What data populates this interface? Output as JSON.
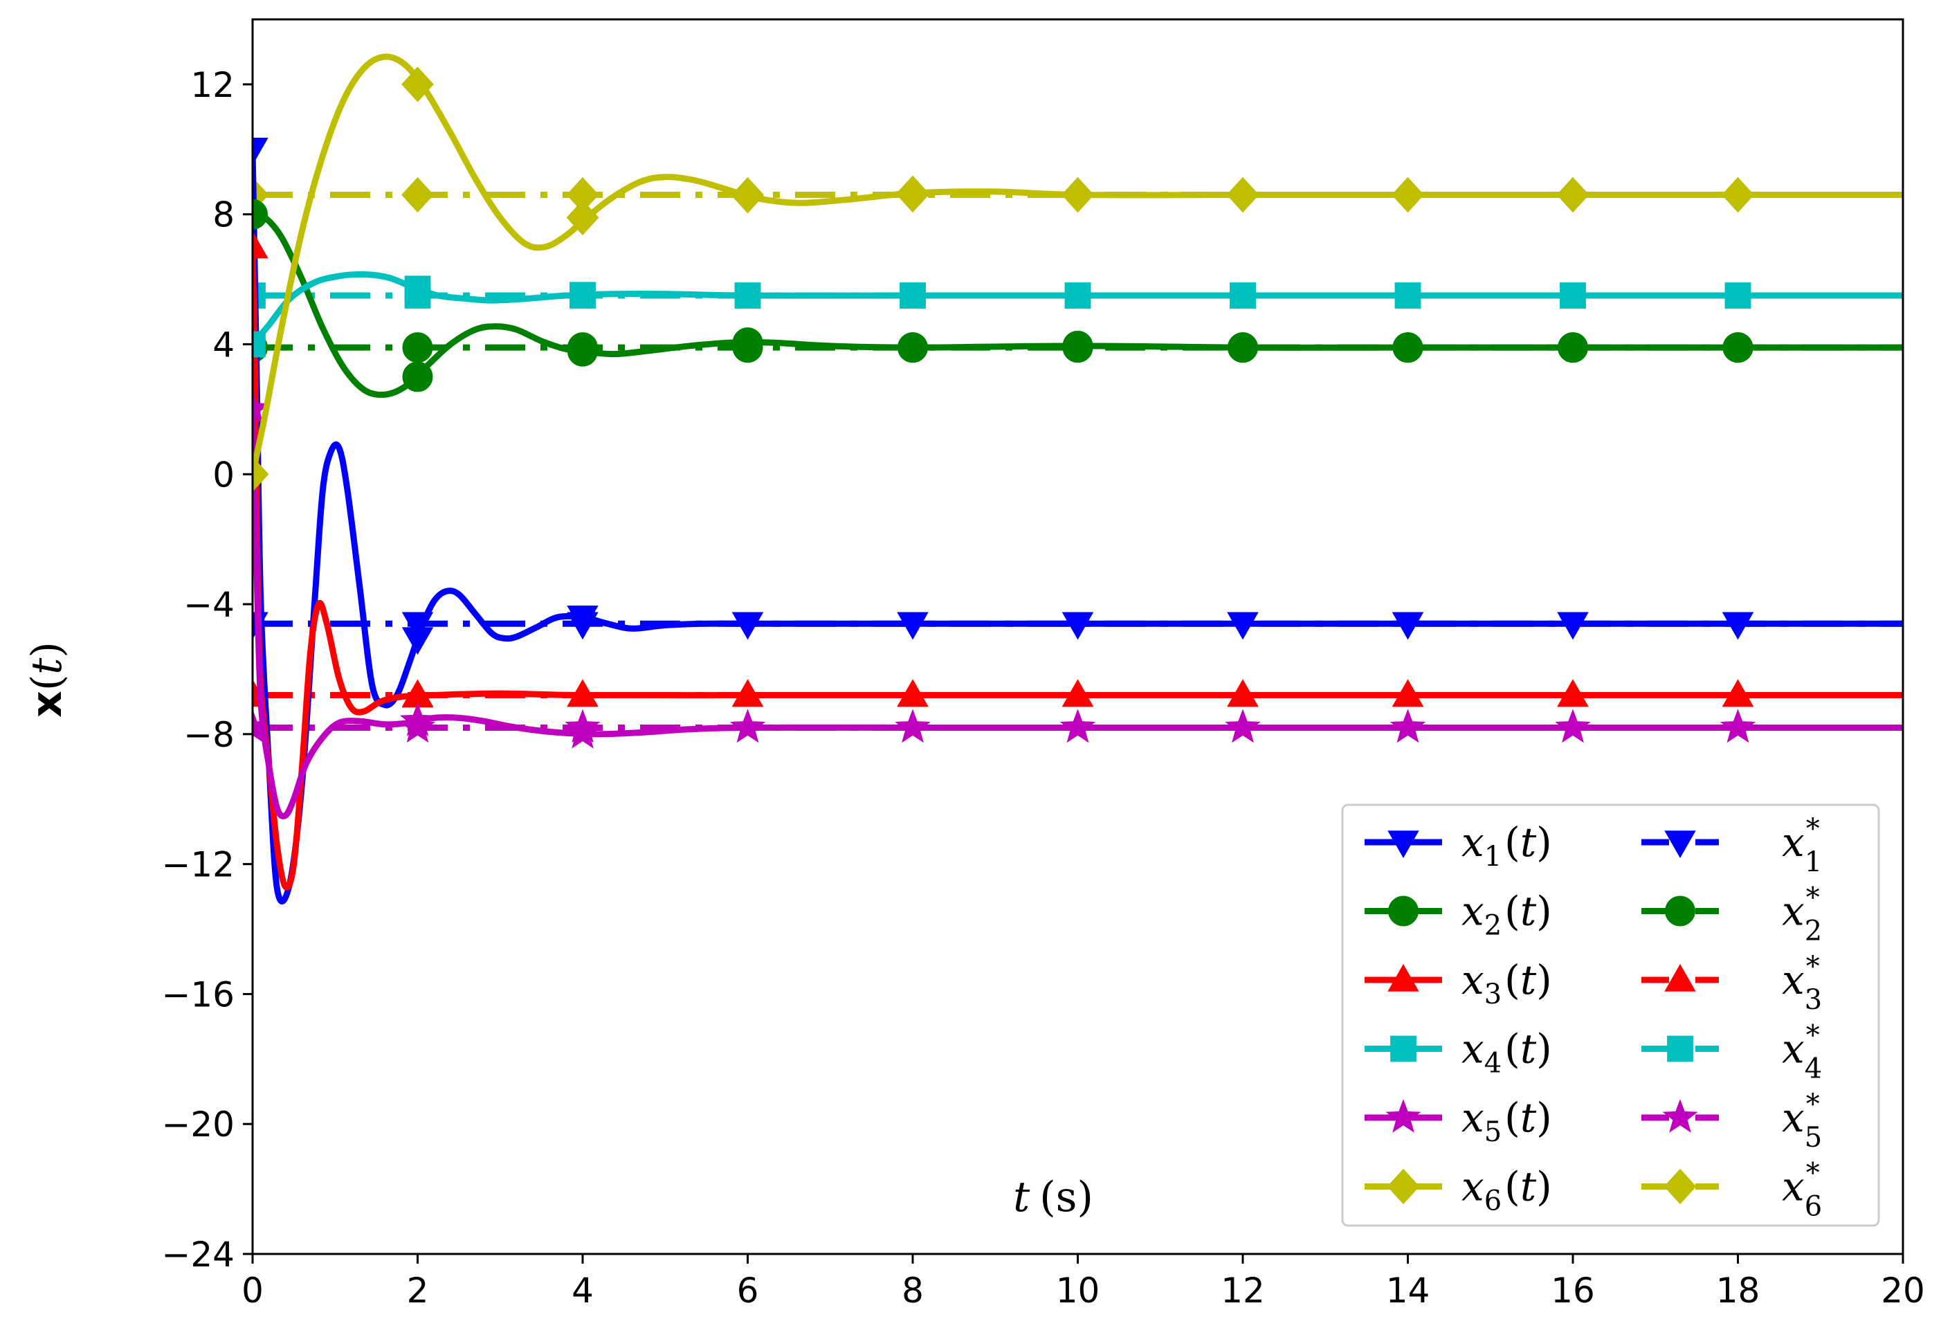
{
  "chart_data": {
    "type": "line",
    "title": "",
    "xlabel": "t (s)",
    "xlabel_main": "t",
    "xlabel_unit": "(s)",
    "ylabel": "x(t)",
    "ylabel_main": "x",
    "ylabel_var": "t",
    "xlim": [
      0,
      20
    ],
    "ylim": [
      -24,
      14
    ],
    "xticks": [
      0,
      2,
      4,
      6,
      8,
      10,
      12,
      14,
      16,
      18,
      20
    ],
    "yticks": [
      -24,
      -20,
      -16,
      -12,
      -8,
      -4,
      0,
      4,
      8,
      12
    ],
    "ytick_labels": [
      "−24",
      "−20",
      "−16",
      "−12",
      "−8",
      "−4",
      "0",
      "4",
      "8",
      "12"
    ],
    "grid": false,
    "legend_position": "lower-right",
    "legend_columns": 2,
    "series": [
      {
        "name": "x1(t)",
        "label_var": "x",
        "label_sub": "1",
        "label_suffix": "(t)",
        "color": "#0000ff",
        "marker": "triangle-down",
        "style": "solid",
        "points": [
          [
            0,
            10
          ],
          [
            0.05,
            3
          ],
          [
            0.1,
            -4
          ],
          [
            0.2,
            -9
          ],
          [
            0.3,
            -12.8
          ],
          [
            0.45,
            -12.6
          ],
          [
            0.6,
            -9.5
          ],
          [
            0.75,
            -4
          ],
          [
            0.85,
            -0.5
          ],
          [
            0.95,
            0.7
          ],
          [
            1.05,
            0.8
          ],
          [
            1.15,
            -0.5
          ],
          [
            1.3,
            -3.5
          ],
          [
            1.45,
            -6.5
          ],
          [
            1.6,
            -7.1
          ],
          [
            1.75,
            -6.8
          ],
          [
            1.9,
            -5.8
          ],
          [
            2.05,
            -4.7
          ],
          [
            2.2,
            -3.9
          ],
          [
            2.35,
            -3.6
          ],
          [
            2.5,
            -3.7
          ],
          [
            2.7,
            -4.3
          ],
          [
            2.9,
            -4.9
          ],
          [
            3.05,
            -5.05
          ],
          [
            3.2,
            -5
          ],
          [
            3.45,
            -4.7
          ],
          [
            3.7,
            -4.4
          ],
          [
            4.0,
            -4.4
          ],
          [
            4.3,
            -4.6
          ],
          [
            4.6,
            -4.75
          ],
          [
            5.0,
            -4.65
          ],
          [
            5.5,
            -4.6
          ],
          [
            6,
            -4.6
          ],
          [
            8,
            -4.6
          ],
          [
            10,
            -4.6
          ],
          [
            12,
            -4.6
          ],
          [
            14,
            -4.6
          ],
          [
            16,
            -4.6
          ],
          [
            18,
            -4.6
          ],
          [
            20,
            -4.6
          ]
        ],
        "marker_x": [
          0,
          2,
          4,
          6,
          8,
          10,
          12,
          14,
          16,
          18
        ]
      },
      {
        "name": "x2(t)",
        "label_var": "x",
        "label_sub": "2",
        "label_suffix": "(t)",
        "color": "#008000",
        "marker": "circle",
        "style": "solid",
        "points": [
          [
            0,
            8
          ],
          [
            0.15,
            7.9
          ],
          [
            0.35,
            7.3
          ],
          [
            0.6,
            6
          ],
          [
            0.85,
            4.5
          ],
          [
            1.1,
            3.3
          ],
          [
            1.35,
            2.6
          ],
          [
            1.6,
            2.45
          ],
          [
            1.85,
            2.7
          ],
          [
            2.1,
            3.3
          ],
          [
            2.4,
            4
          ],
          [
            2.7,
            4.45
          ],
          [
            2.95,
            4.55
          ],
          [
            3.2,
            4.45
          ],
          [
            3.5,
            4.1
          ],
          [
            3.8,
            3.85
          ],
          [
            4.1,
            3.75
          ],
          [
            4.4,
            3.7
          ],
          [
            4.8,
            3.8
          ],
          [
            5.3,
            3.95
          ],
          [
            5.8,
            4.05
          ],
          [
            6.3,
            4.05
          ],
          [
            7,
            3.95
          ],
          [
            8,
            3.9
          ],
          [
            10,
            3.95
          ],
          [
            12,
            3.9
          ],
          [
            14,
            3.9
          ],
          [
            16,
            3.9
          ],
          [
            18,
            3.9
          ],
          [
            20,
            3.9
          ]
        ],
        "marker_x": [
          0,
          2,
          4,
          6,
          8,
          10,
          12,
          14,
          16,
          18
        ],
        "marker_override": [
          [
            2,
            3.0
          ]
        ]
      },
      {
        "name": "x3(t)",
        "label_var": "x",
        "label_sub": "3",
        "label_suffix": "(t)",
        "color": "#ff0000",
        "marker": "triangle-up",
        "style": "solid",
        "points": [
          [
            0,
            7
          ],
          [
            0.03,
            3
          ],
          [
            0.06,
            -3
          ],
          [
            0.1,
            -6.5
          ],
          [
            0.2,
            -9
          ],
          [
            0.3,
            -11.5
          ],
          [
            0.4,
            -12.7
          ],
          [
            0.5,
            -12
          ],
          [
            0.6,
            -9
          ],
          [
            0.7,
            -5.5
          ],
          [
            0.8,
            -4
          ],
          [
            0.9,
            -4.6
          ],
          [
            1.05,
            -6.3
          ],
          [
            1.2,
            -7.2
          ],
          [
            1.35,
            -7.3
          ],
          [
            1.55,
            -7
          ],
          [
            1.8,
            -6.85
          ],
          [
            2.2,
            -6.8
          ],
          [
            3,
            -6.75
          ],
          [
            4,
            -6.8
          ],
          [
            6,
            -6.8
          ],
          [
            8,
            -6.8
          ],
          [
            10,
            -6.8
          ],
          [
            12,
            -6.8
          ],
          [
            14,
            -6.8
          ],
          [
            16,
            -6.8
          ],
          [
            18,
            -6.8
          ],
          [
            20,
            -6.8
          ]
        ],
        "marker_x": [
          0,
          2,
          4,
          6,
          8,
          10,
          12,
          14,
          16,
          18
        ]
      },
      {
        "name": "x4(t)",
        "label_var": "x",
        "label_sub": "4",
        "label_suffix": "(t)",
        "color": "#00bfbf",
        "marker": "square",
        "style": "solid",
        "points": [
          [
            0,
            4
          ],
          [
            0.2,
            4.6
          ],
          [
            0.45,
            5.4
          ],
          [
            0.75,
            5.9
          ],
          [
            1.05,
            6.1
          ],
          [
            1.35,
            6.15
          ],
          [
            1.65,
            6.05
          ],
          [
            1.95,
            5.75
          ],
          [
            2.25,
            5.5
          ],
          [
            2.6,
            5.4
          ],
          [
            2.9,
            5.35
          ],
          [
            3.3,
            5.4
          ],
          [
            3.8,
            5.5
          ],
          [
            4.4,
            5.55
          ],
          [
            5,
            5.55
          ],
          [
            6,
            5.5
          ],
          [
            8,
            5.5
          ],
          [
            10,
            5.5
          ],
          [
            12,
            5.5
          ],
          [
            14,
            5.5
          ],
          [
            16,
            5.5
          ],
          [
            18,
            5.5
          ],
          [
            20,
            5.5
          ]
        ],
        "marker_x": [
          0,
          2,
          4,
          6,
          8,
          10,
          12,
          14,
          16,
          18
        ]
      },
      {
        "name": "x5(t)",
        "label_var": "x",
        "label_sub": "5",
        "label_suffix": "(t)",
        "color": "#bf00bf",
        "marker": "star",
        "style": "solid",
        "points": [
          [
            0,
            2
          ],
          [
            0.05,
            -3
          ],
          [
            0.1,
            -7
          ],
          [
            0.2,
            -9
          ],
          [
            0.3,
            -10.3
          ],
          [
            0.4,
            -10.5
          ],
          [
            0.5,
            -10
          ],
          [
            0.65,
            -8.9
          ],
          [
            0.85,
            -8.1
          ],
          [
            1.05,
            -7.65
          ],
          [
            1.3,
            -7.6
          ],
          [
            1.6,
            -7.7
          ],
          [
            1.9,
            -7.65
          ],
          [
            2.2,
            -7.5
          ],
          [
            2.5,
            -7.5
          ],
          [
            2.8,
            -7.6
          ],
          [
            3.2,
            -7.8
          ],
          [
            3.7,
            -7.95
          ],
          [
            4.2,
            -8
          ],
          [
            4.7,
            -7.95
          ],
          [
            5.3,
            -7.85
          ],
          [
            6,
            -7.8
          ],
          [
            8,
            -7.8
          ],
          [
            10,
            -7.8
          ],
          [
            12,
            -7.8
          ],
          [
            14,
            -7.8
          ],
          [
            16,
            -7.8
          ],
          [
            18,
            -7.8
          ],
          [
            20,
            -7.8
          ]
        ],
        "marker_x": [
          0,
          2,
          4,
          6,
          8,
          10,
          12,
          14,
          16,
          18
        ]
      },
      {
        "name": "x6(t)",
        "label_var": "x",
        "label_sub": "6",
        "label_suffix": "(t)",
        "color": "#bfbf00",
        "marker": "diamond",
        "style": "solid",
        "points": [
          [
            0,
            0
          ],
          [
            0.15,
            1.8
          ],
          [
            0.35,
            4.5
          ],
          [
            0.6,
            7.5
          ],
          [
            0.85,
            9.8
          ],
          [
            1.1,
            11.5
          ],
          [
            1.35,
            12.5
          ],
          [
            1.6,
            12.85
          ],
          [
            1.85,
            12.6
          ],
          [
            2.1,
            11.8
          ],
          [
            2.4,
            10.5
          ],
          [
            2.7,
            9.1
          ],
          [
            3.0,
            7.9
          ],
          [
            3.3,
            7.1
          ],
          [
            3.55,
            7
          ],
          [
            3.8,
            7.35
          ],
          [
            4.05,
            7.9
          ],
          [
            4.35,
            8.5
          ],
          [
            4.7,
            9
          ],
          [
            5.0,
            9.15
          ],
          [
            5.35,
            9.05
          ],
          [
            5.7,
            8.8
          ],
          [
            6.1,
            8.5
          ],
          [
            6.6,
            8.35
          ],
          [
            7.2,
            8.45
          ],
          [
            8,
            8.65
          ],
          [
            9,
            8.7
          ],
          [
            10,
            8.6
          ],
          [
            12,
            8.6
          ],
          [
            14,
            8.6
          ],
          [
            16,
            8.6
          ],
          [
            18,
            8.6
          ],
          [
            20,
            8.6
          ]
        ],
        "marker_x": [
          0,
          2,
          4,
          6,
          8,
          10,
          12,
          14,
          16,
          18
        ],
        "marker_override": [
          [
            2,
            12.0
          ],
          [
            4,
            7.9
          ]
        ]
      },
      {
        "name": "x1*",
        "label_var": "x",
        "label_sub": "1",
        "label_suffix": "*",
        "color": "#0000ff",
        "marker": "triangle-down",
        "style": "dashdot",
        "points": [
          [
            0,
            -4.6
          ],
          [
            20,
            -4.6
          ]
        ],
        "marker_x": [
          0,
          2,
          4,
          6,
          8,
          10,
          12,
          14,
          16,
          18
        ]
      },
      {
        "name": "x2*",
        "label_var": "x",
        "label_sub": "2",
        "label_suffix": "*",
        "color": "#008000",
        "marker": "circle",
        "style": "dashdot",
        "points": [
          [
            0,
            3.9
          ],
          [
            20,
            3.9
          ]
        ],
        "marker_x": [
          0,
          2,
          4,
          6,
          8,
          10,
          12,
          14,
          16,
          18
        ]
      },
      {
        "name": "x3*",
        "label_var": "x",
        "label_sub": "3",
        "label_suffix": "*",
        "color": "#ff0000",
        "marker": "triangle-up",
        "style": "dashdot",
        "points": [
          [
            0,
            -6.8
          ],
          [
            20,
            -6.8
          ]
        ],
        "marker_x": [
          0,
          2,
          4,
          6,
          8,
          10,
          12,
          14,
          16,
          18
        ]
      },
      {
        "name": "x4*",
        "label_var": "x",
        "label_sub": "4",
        "label_suffix": "*",
        "color": "#00bfbf",
        "marker": "square",
        "style": "dashdot",
        "points": [
          [
            0,
            5.5
          ],
          [
            20,
            5.5
          ]
        ],
        "marker_x": [
          0,
          2,
          4,
          6,
          8,
          10,
          12,
          14,
          16,
          18
        ]
      },
      {
        "name": "x5*",
        "label_var": "x",
        "label_sub": "5",
        "label_suffix": "*",
        "color": "#bf00bf",
        "marker": "star",
        "style": "dashdot",
        "points": [
          [
            0,
            -7.8
          ],
          [
            20,
            -7.8
          ]
        ],
        "marker_x": [
          0,
          2,
          4,
          6,
          8,
          10,
          12,
          14,
          16,
          18
        ]
      },
      {
        "name": "x6*",
        "label_var": "x",
        "label_sub": "6",
        "label_suffix": "*",
        "color": "#bfbf00",
        "marker": "diamond",
        "style": "dashdot",
        "points": [
          [
            0,
            8.6
          ],
          [
            20,
            8.6
          ]
        ],
        "marker_x": [
          0,
          2,
          4,
          6,
          8,
          10,
          12,
          14,
          16,
          18
        ]
      }
    ]
  }
}
